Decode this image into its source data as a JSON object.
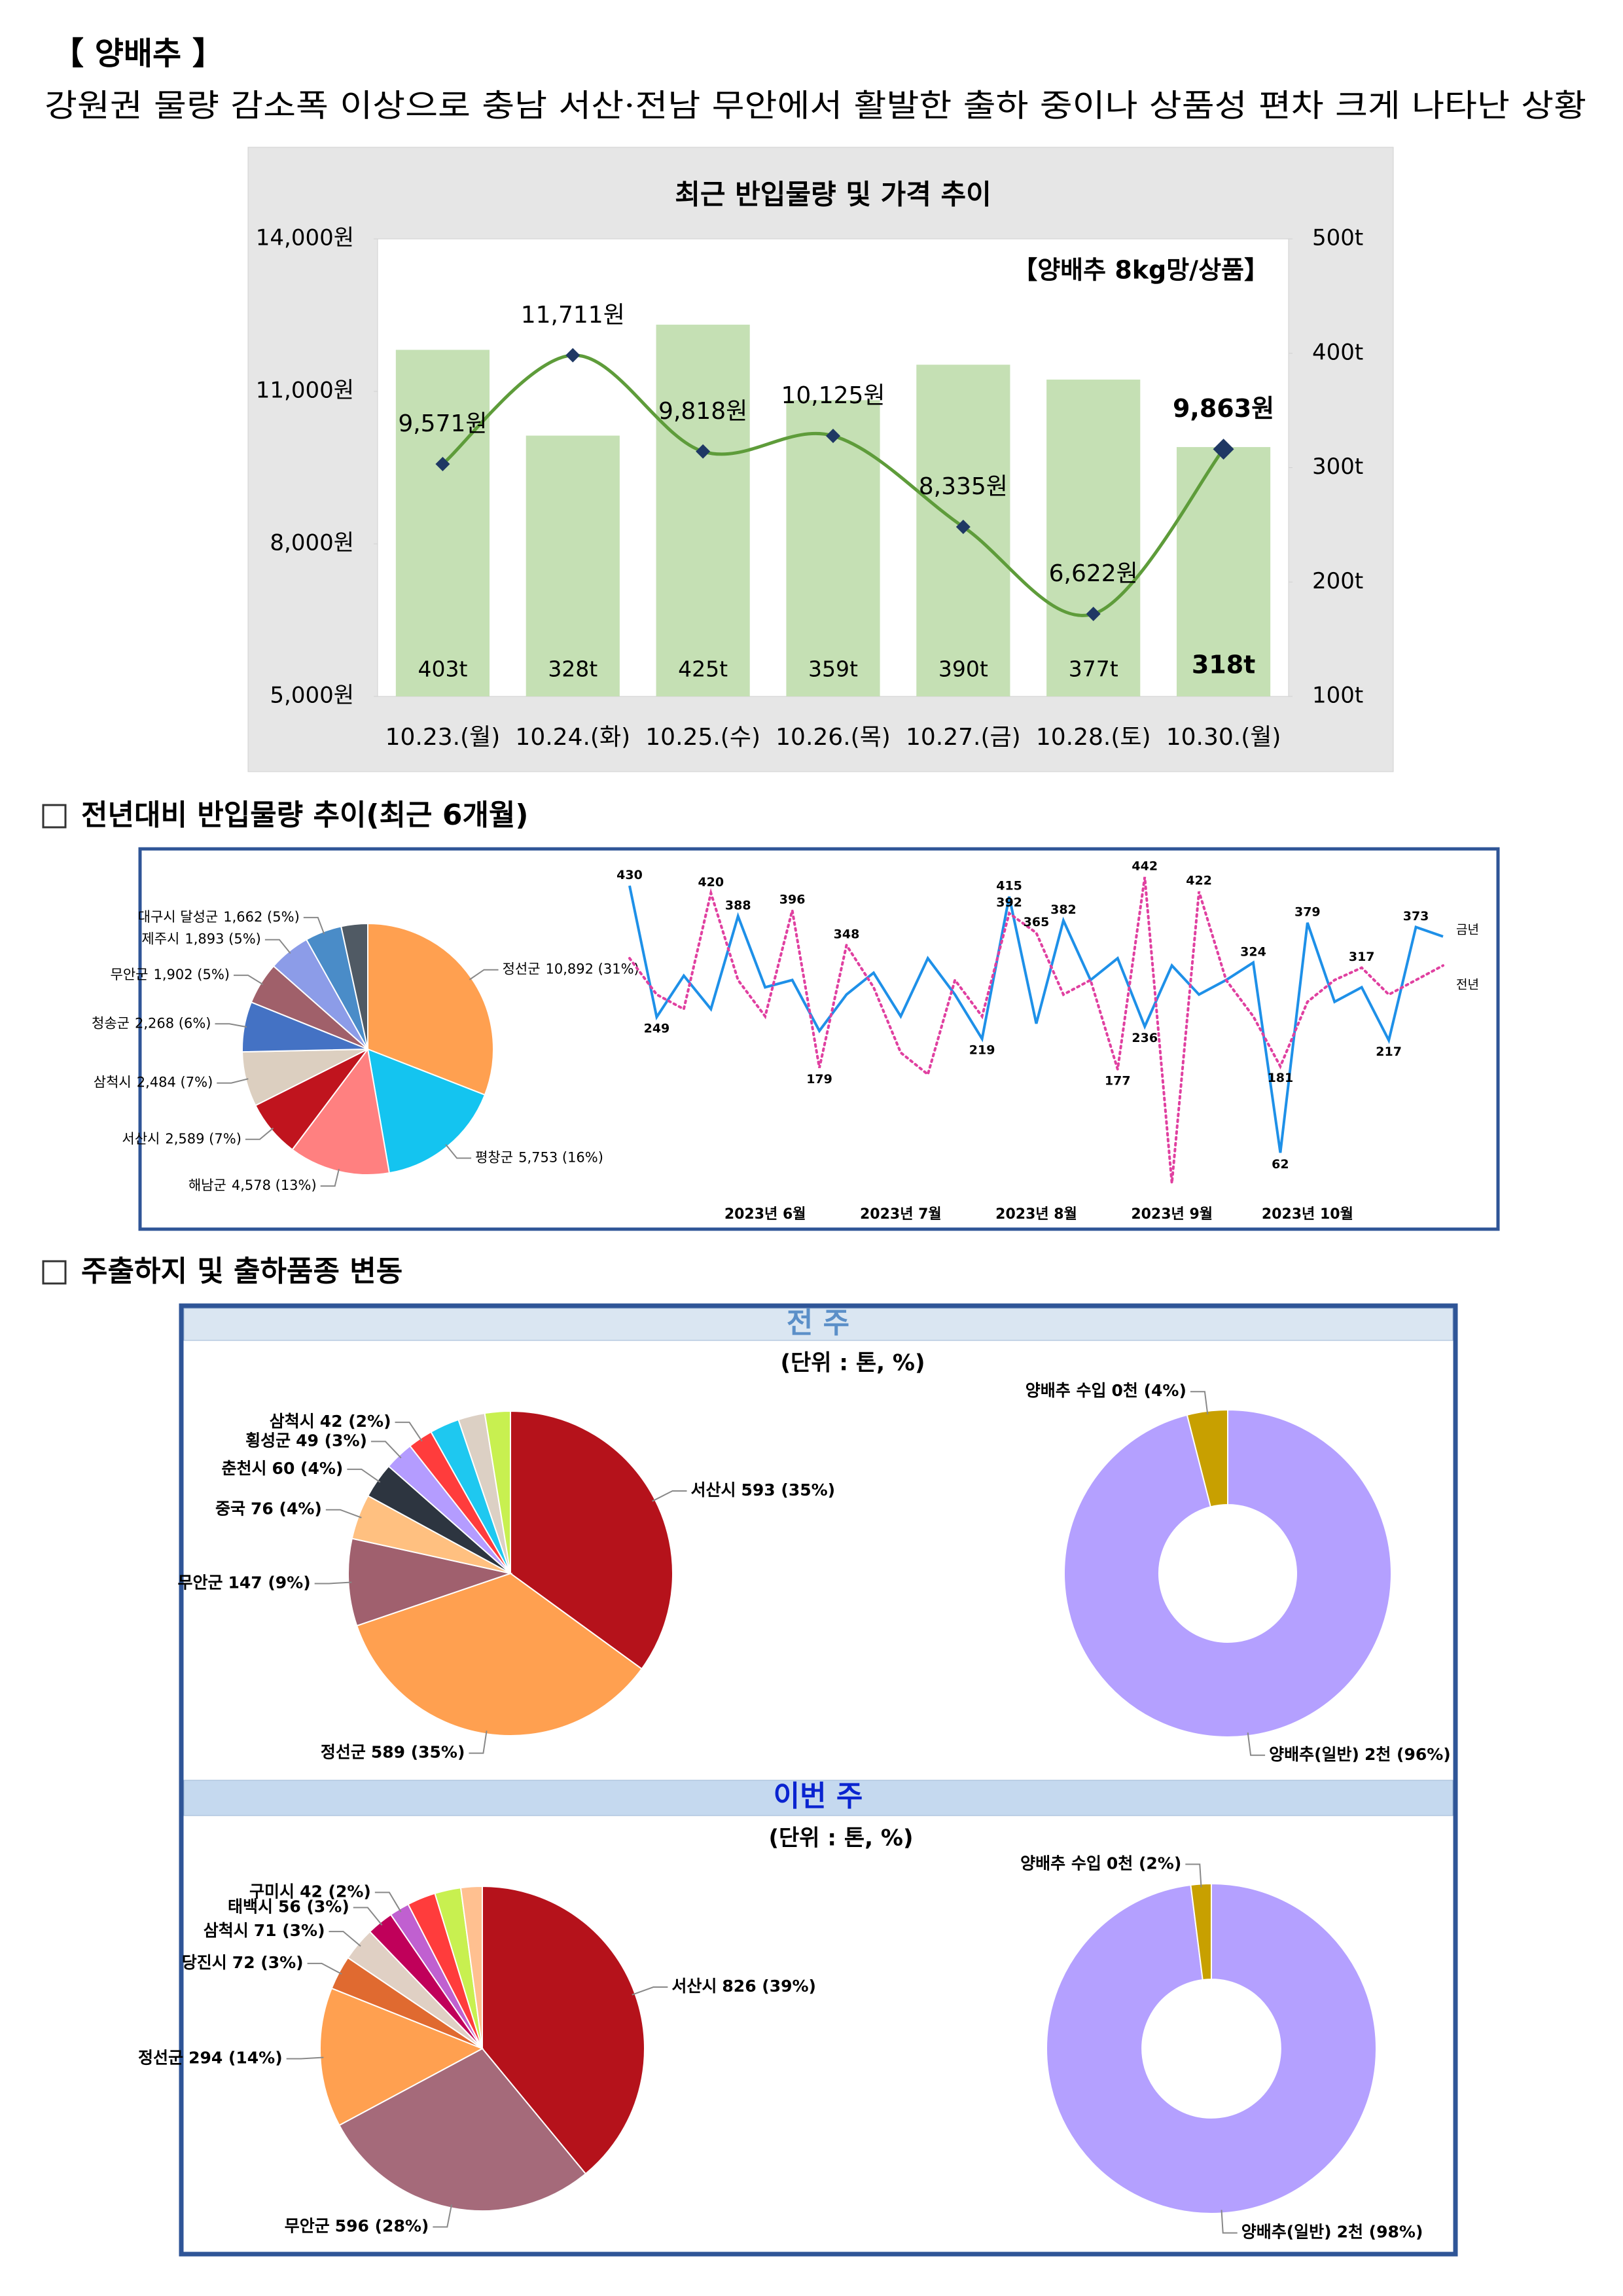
{
  "header": {
    "title": "【 양배추 】",
    "subtitle": "강원권 물량 감소폭 이상으로 충남 서산·전남 무안에서 활발한 출하 중이나 상품성 편차 크게 나타난 상황"
  },
  "sections": [
    "전년대비 반입물량 추이(최근 6개월)",
    "주출하지 및 출하품종 변동"
  ],
  "panels": [
    {
      "title": "전 주",
      "unit": "(단위 : 톤, %)"
    },
    {
      "title": "이번 주",
      "unit": "(단위 : 톤, %)"
    }
  ],
  "chart_data": [
    {
      "type": "combo",
      "title": "최근 반입물량 및 가격 추이",
      "annotation": "【양배추 8kg망/상품】",
      "categories": [
        "10.23.(월)",
        "10.24.(화)",
        "10.25.(수)",
        "10.26.(목)",
        "10.27.(금)",
        "10.28.(토)",
        "10.30.(월)"
      ],
      "series": [
        {
          "type": "bar",
          "axis": "y2",
          "color": "#c5e0b4",
          "values": [
            403,
            328,
            425,
            359,
            390,
            377,
            318
          ],
          "value_labels": [
            "403t",
            "328t",
            "425t",
            "359t",
            "390t",
            "377t",
            "318t"
          ]
        },
        {
          "type": "line",
          "color": "#5e9c3a",
          "marker_color": "#1f3864",
          "values": [
            9571,
            11711,
            9818,
            10125,
            8335,
            6622,
            9863
          ],
          "value_labels": [
            "9,571원",
            "11,711원",
            "9,818원",
            "10,125원",
            "8,335원",
            "6,622원",
            "9,863원"
          ]
        }
      ],
      "ylim": [
        5000,
        14000
      ],
      "yticks": [
        {
          "value": 5000,
          "label": "5,000원"
        },
        {
          "value": 8000,
          "label": "8,000원"
        },
        {
          "value": 11000,
          "label": "11,000원"
        },
        {
          "value": 14000,
          "label": "14,000원"
        }
      ],
      "y2lim": [
        100,
        500
      ],
      "y2ticks": [
        {
          "value": 100,
          "label": "100t"
        },
        {
          "value": 200,
          "label": "200t"
        },
        {
          "value": 300,
          "label": "300t"
        },
        {
          "value": 400,
          "label": "400t"
        },
        {
          "value": 500,
          "label": "500t"
        }
      ]
    },
    {
      "type": "pie",
      "categories": [
        "정선군",
        "평창군",
        "해남군",
        "서산시",
        "삼척시",
        "청송군",
        "무안군",
        "제주시",
        "대구시 달성군",
        null
      ],
      "values": [
        10892,
        5753,
        4578,
        2589,
        2484,
        2268,
        1902,
        1893,
        1662,
        1200
      ],
      "value_labels": [
        "10,892 (31%)",
        "5,753 (16%)",
        "4,578 (13%)",
        "2,589 (7%)",
        "2,484 (7%)",
        "2,268 (6%)",
        "1,902 (5%)",
        "1,893 (5%)",
        "1,662 (5%)",
        null
      ],
      "colors": [
        "#ffa050",
        "#14c4f0",
        "#ff8080",
        "#c0141e",
        "#dccfc0",
        "#4472c4",
        "#a0606a",
        "#8c9ce8",
        "#4a8cc8",
        "#505a64"
      ]
    },
    {
      "type": "line",
      "ylim": [
        0,
        460
      ],
      "legend": "right",
      "categories": [
        null,
        null,
        null,
        null,
        null,
        "2023년 6월",
        null,
        null,
        null,
        null,
        "2023년 7월",
        null,
        null,
        null,
        null,
        "2023년 8월",
        null,
        null,
        null,
        null,
        "2023년 9월",
        null,
        null,
        null,
        null,
        "2023년 10월",
        null,
        null,
        null,
        null,
        null
      ],
      "series": [
        {
          "name": "금년",
          "color": "#1e90e8",
          "style": "solid",
          "values": [
            430,
            249,
            306,
            260,
            388,
            290,
            300,
            230,
            280,
            310,
            250,
            330,
            280,
            219,
            415,
            240,
            382,
            300,
            330,
            236,
            320,
            280,
            300,
            324,
            62,
            379,
            270,
            290,
            217,
            373,
            360
          ],
          "value_labels": [
            "430",
            "249",
            null,
            null,
            "388",
            null,
            null,
            null,
            null,
            null,
            null,
            null,
            null,
            "219",
            "415",
            null,
            "382",
            null,
            null,
            "236",
            null,
            null,
            null,
            "324",
            "62",
            "379",
            null,
            null,
            "217",
            "373",
            null
          ]
        },
        {
          "name": "전년",
          "color": "#e040a0",
          "style": "dotted",
          "values": [
            330,
            280,
            260,
            420,
            300,
            250,
            396,
            179,
            348,
            290,
            200,
            170,
            300,
            250,
            392,
            365,
            280,
            300,
            177,
            442,
            20,
            422,
            300,
            250,
            181,
            270,
            300,
            317,
            280,
            300,
            320
          ],
          "value_labels": [
            null,
            null,
            null,
            "420",
            null,
            null,
            "396",
            "179",
            "348",
            null,
            null,
            null,
            null,
            null,
            "392",
            "365",
            null,
            null,
            "177",
            "442",
            null,
            "422",
            null,
            null,
            "181",
            null,
            null,
            "317",
            null,
            null,
            null
          ]
        }
      ]
    },
    {
      "type": "pie",
      "categories": [
        "서산시",
        "정선군",
        "무안군",
        "중국",
        "춘천시",
        "횡성군",
        "삼척시",
        null,
        null,
        null
      ],
      "values": [
        593,
        589,
        147,
        76,
        60,
        49,
        42,
        50,
        45,
        43
      ],
      "value_labels": [
        "593 (35%)",
        "589 (35%)",
        "147 (9%)",
        "76 (4%)",
        "60 (4%)",
        "49 (3%)",
        "42 (2%)",
        null,
        null,
        null
      ],
      "colors": [
        "#b5121b",
        "#ffa050",
        "#a0606e",
        "#ffc080",
        "#2d3540",
        "#b49cff",
        "#ff3c3c",
        "#1ec8f0",
        "#dcd0c4",
        "#c8f050"
      ]
    },
    {
      "type": "donut",
      "categories": [
        "양배추(일반)",
        "양배추 수입"
      ],
      "values": [
        96,
        4
      ],
      "value_labels": [
        "2천 (96%)",
        "0천 (4%)"
      ],
      "colors": [
        "#b4a0ff",
        "#c8a000"
      ]
    },
    {
      "type": "pie",
      "categories": [
        "서산시",
        "무안군",
        "정선군",
        "당진시",
        "삼척시",
        "태백시",
        "구미시",
        null,
        null,
        null
      ],
      "values": [
        826,
        596,
        294,
        72,
        71,
        56,
        42,
        60,
        55,
        45
      ],
      "value_labels": [
        "826 (39%)",
        "596 (28%)",
        "294 (14%)",
        "72 (3%)",
        "71 (3%)",
        "56 (3%)",
        "42 (2%)",
        null,
        null,
        null
      ],
      "colors": [
        "#b5121b",
        "#a56a7a",
        "#ffa050",
        "#e06a30",
        "#e0d0c4",
        "#c0005a",
        "#c060d0",
        "#ff3c3c",
        "#c8f050",
        "#ffc090"
      ]
    },
    {
      "type": "donut",
      "categories": [
        "양배추(일반)",
        "양배추 수입"
      ],
      "values": [
        98,
        2
      ],
      "value_labels": [
        "2천 (98%)",
        "0천 (2%)"
      ],
      "colors": [
        "#b4a0ff",
        "#c8a000"
      ]
    }
  ]
}
